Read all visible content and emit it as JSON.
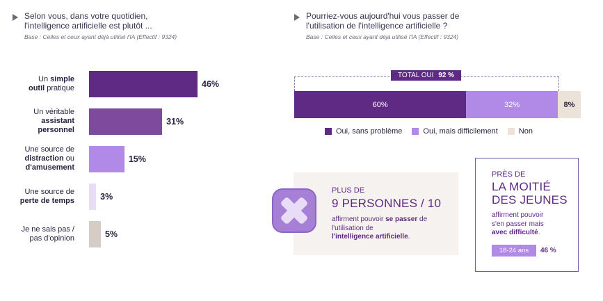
{
  "left": {
    "question_line1": "Selon vous, dans votre quotidien,",
    "question_line2": "l'intelligence artificielle est plutôt ...",
    "base": "Base : Celles et ceux ayant déjà utilisé l'IA (Effectif : 9324)"
  },
  "right": {
    "question_line1": "Pourriez-vous aujourd'hui vous passer de",
    "question_line2": "l'utilisation de l'intelligence artificielle ?",
    "base": "Base : Celles et ceux ayant déjà utilisé l'IA (Effectif : 9324)",
    "total_label": "TOTAL OUI",
    "total_value": "92 %"
  },
  "chart_data": [
    {
      "type": "bar",
      "orientation": "horizontal",
      "categories": [
        "Un simple outil pratique",
        "Un véritable assistant personnel",
        "Une source de distraction ou d'amusement",
        "Une source de perte de temps",
        "Je ne sais pas / pas d'opinion"
      ],
      "values": [
        46,
        31,
        15,
        3,
        5
      ],
      "value_labels": [
        "46%",
        "31%",
        "15%",
        "3%",
        "5%"
      ],
      "unit": "%",
      "xlim": [
        0,
        100
      ],
      "colors": [
        "#5e2a84",
        "#7d4a9e",
        "#b08ae6",
        "#e8ddf6",
        "#d6ccc6"
      ]
    },
    {
      "type": "bar",
      "orientation": "horizontal-stacked",
      "series": [
        {
          "name": "Oui, sans problème",
          "values": [
            60
          ],
          "label": "60%",
          "color": "#5e2a84"
        },
        {
          "name": "Oui, mais difficilement",
          "values": [
            32
          ],
          "label": "32%",
          "color": "#b08ae6"
        },
        {
          "name": "Non",
          "values": [
            8
          ],
          "label": "8%",
          "color": "#ebe2da"
        }
      ],
      "unit": "%",
      "legend": "bottom"
    }
  ],
  "card1": {
    "line_small": "PLUS DE",
    "line_big": "9 PERSONNES / 10",
    "body_pre": "affirment pouvoir ",
    "body_bold1": "se passer",
    "body_mid": " de l'utilisation de",
    "body_bold2": "l'intelligence artificielle",
    "body_end": ".",
    "icon": "x-mark-icon"
  },
  "card2": {
    "line_small": "PRÈS DE",
    "line_big1": "LA MOITIÉ",
    "line_big2": "DES JEUNES",
    "body1": "affirment pouvoir",
    "body2": "s'en passer mais",
    "body_bold": "avec difficulté",
    "body_end": ".",
    "age_label": "18-24 ans",
    "age_value": "46 %",
    "age_fraction": 0.46
  }
}
